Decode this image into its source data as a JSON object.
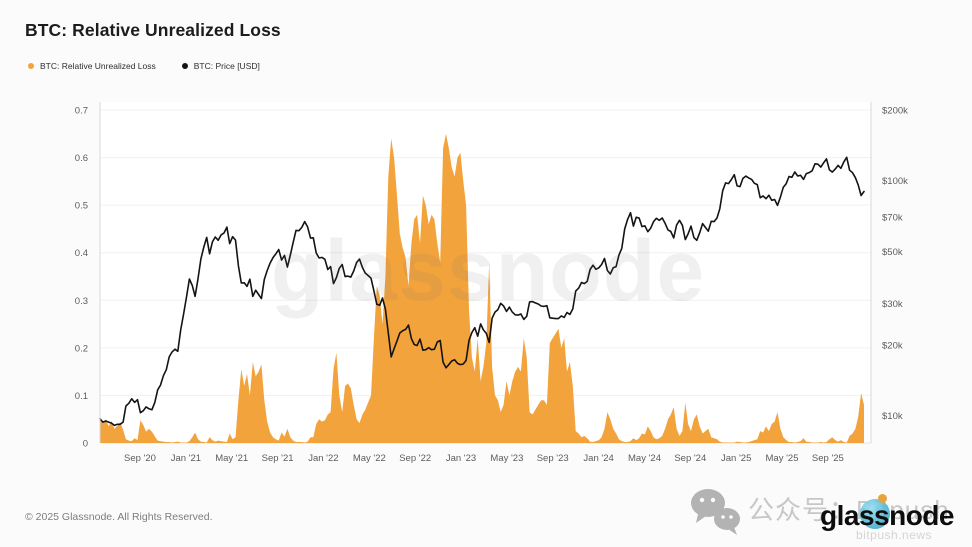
{
  "title": "BTC: Relative Unrealized Loss",
  "legend": [
    {
      "label": "BTC: Relative Unrealized Loss",
      "color": "#f2a33c"
    },
    {
      "label": "BTC: Price [USD]",
      "color": "#141414"
    }
  ],
  "footer": {
    "copyright": "© 2025 Glassnode. All Rights Reserved."
  },
  "watermark": {
    "center": "glassnode",
    "wechat_label": "公众号：Bitpush",
    "brand": "glassnode",
    "site": "bitpush.news"
  },
  "chart_data": {
    "type": "area+line",
    "title": "BTC: Relative Unrealized Loss",
    "x_range": [
      "May 2020",
      "Nov 2025"
    ],
    "x_ticks": [
      "Sep '20",
      "Jan '21",
      "May '21",
      "Sep '21",
      "Jan '22",
      "May '22",
      "Sep '22",
      "Jan '23",
      "May '23",
      "Sep '23",
      "Jan '24",
      "May '24",
      "Sep '24",
      "Jan '25",
      "May '25",
      "Sep '25"
    ],
    "grid": true,
    "legend_position": "top-left",
    "y_left": {
      "label": "Relative Unrealized Loss",
      "min": 0,
      "max": 0.7,
      "ticks": [
        0,
        0.1,
        0.2,
        0.3,
        0.4,
        0.5,
        0.6,
        0.7
      ],
      "scale": "linear"
    },
    "y_right": {
      "label": "BTC Price [USD]",
      "ticks_k": [
        200,
        100,
        70,
        50,
        30,
        20,
        10
      ],
      "scale": "log",
      "unit": "USD thousands"
    },
    "sampling": "weekly (4 points per month)",
    "series": [
      {
        "name": "BTC: Relative Unrealized Loss",
        "axis": "left",
        "type": "area",
        "color": "#f2a33c",
        "values": [
          0.055,
          0.042,
          0.05,
          0.035,
          0.046,
          0.03,
          0.036,
          0.044,
          0.028,
          0.008,
          0.005,
          0.004,
          0.01,
          0.006,
          0.048,
          0.038,
          0.024,
          0.03,
          0.024,
          0.014,
          0.005,
          0.004,
          0.003,
          0.002,
          0.002,
          0.001,
          0.002,
          0.003,
          0.001,
          0.001,
          0.001,
          0.004,
          0.012,
          0.022,
          0.008,
          0.003,
          0.002,
          0.001,
          0.012,
          0.006,
          0.003,
          0.005,
          0.004,
          0.003,
          0.002,
          0.02,
          0.008,
          0.012,
          0.09,
          0.155,
          0.12,
          0.145,
          0.1,
          0.17,
          0.14,
          0.15,
          0.165,
          0.09,
          0.045,
          0.022,
          0.012,
          0.008,
          0.005,
          0.022,
          0.013,
          0.03,
          0.012,
          0.005,
          0.002,
          0.002,
          0.002,
          0.001,
          0.003,
          0.012,
          0.012,
          0.04,
          0.05,
          0.045,
          0.048,
          0.06,
          0.065,
          0.155,
          0.19,
          0.1,
          0.065,
          0.12,
          0.125,
          0.115,
          0.08,
          0.05,
          0.042,
          0.06,
          0.07,
          0.085,
          0.1,
          0.22,
          0.33,
          0.31,
          0.25,
          0.35,
          0.56,
          0.64,
          0.6,
          0.52,
          0.44,
          0.41,
          0.39,
          0.33,
          0.42,
          0.47,
          0.48,
          0.42,
          0.52,
          0.5,
          0.46,
          0.48,
          0.47,
          0.42,
          0.38,
          0.62,
          0.65,
          0.62,
          0.58,
          0.56,
          0.6,
          0.61,
          0.55,
          0.5,
          0.28,
          0.18,
          0.15,
          0.22,
          0.13,
          0.16,
          0.21,
          0.38,
          0.16,
          0.1,
          0.09,
          0.065,
          0.08,
          0.13,
          0.1,
          0.13,
          0.15,
          0.16,
          0.15,
          0.22,
          0.18,
          0.065,
          0.06,
          0.07,
          0.08,
          0.09,
          0.09,
          0.08,
          0.21,
          0.22,
          0.23,
          0.24,
          0.2,
          0.22,
          0.15,
          0.17,
          0.12,
          0.025,
          0.02,
          0.012,
          0.015,
          0.01,
          0.003,
          0.002,
          0.004,
          0.006,
          0.012,
          0.03,
          0.065,
          0.05,
          0.03,
          0.02,
          0.008,
          0.004,
          0.002,
          0.002,
          0.004,
          0.01,
          0.006,
          0.01,
          0.02,
          0.018,
          0.035,
          0.025,
          0.012,
          0.008,
          0.01,
          0.015,
          0.03,
          0.05,
          0.06,
          0.075,
          0.03,
          0.015,
          0.025,
          0.085,
          0.04,
          0.025,
          0.05,
          0.06,
          0.035,
          0.02,
          0.025,
          0.03,
          0.012,
          0.01,
          0.008,
          0.003,
          0.001,
          0.001,
          0.001,
          0.001,
          0.001,
          0.003,
          0.002,
          0.001,
          0.001,
          0.002,
          0.004,
          0.006,
          0.008,
          0.025,
          0.022,
          0.035,
          0.025,
          0.04,
          0.045,
          0.065,
          0.03,
          0.012,
          0.006,
          0.002,
          0.002,
          0.001,
          0.002,
          0.004,
          0.01,
          0.003,
          0.002,
          0.001,
          0.001,
          0.001,
          0.002,
          0.001,
          0.002,
          0.008,
          0.012,
          0.006,
          0.003,
          0.006,
          0.002,
          0.001,
          0.015,
          0.02,
          0.03,
          0.055,
          0.105,
          0.08
        ]
      },
      {
        "name": "BTC: Price [USD]",
        "axis": "right",
        "type": "line",
        "color": "#141414",
        "unit": "USD thousands",
        "values": [
          9.7,
          9.4,
          9.5,
          9.4,
          9.3,
          9.1,
          9.2,
          9.2,
          9.4,
          11.0,
          11.3,
          11.8,
          11.4,
          11.7,
          10.3,
          10.5,
          10.9,
          10.7,
          10.6,
          11.4,
          12.9,
          13.5,
          14.8,
          15.7,
          17.8,
          18.7,
          19.2,
          18.8,
          23.2,
          27.1,
          32.0,
          38.2,
          35.8,
          32.2,
          38.3,
          46.5,
          52.2,
          57.4,
          48.9,
          54.9,
          57.6,
          55.8,
          58.8,
          59.9,
          63.5,
          54.0,
          57.8,
          55.9,
          43.5,
          36.7,
          36.8,
          35.5,
          38.1,
          32.2,
          34.2,
          32.8,
          31.5,
          38.0,
          41.5,
          44.6,
          47.1,
          48.9,
          51.0,
          46.0,
          48.1,
          42.9,
          48.2,
          54.7,
          61.5,
          61.3,
          63.3,
          67.0,
          63.6,
          57.0,
          57.2,
          49.3,
          46.9,
          47.2,
          46.3,
          41.9,
          43.1,
          36.5,
          38.7,
          42.4,
          44.0,
          39.1,
          39.3,
          38.9,
          41.3,
          44.9,
          46.4,
          42.8,
          40.5,
          39.5,
          38.5,
          34.0,
          29.8,
          29.5,
          31.7,
          28.4,
          22.5,
          17.8,
          19.3,
          20.8,
          22.5,
          23.0,
          23.3,
          24.3,
          21.3,
          20.1,
          19.9,
          21.2,
          19.0,
          19.1,
          19.5,
          19.1,
          19.2,
          20.6,
          20.9,
          16.9,
          16.0,
          16.5,
          17.1,
          17.3,
          16.7,
          16.5,
          16.6,
          17.2,
          20.9,
          22.6,
          23.7,
          21.8,
          24.6,
          23.2,
          22.4,
          20.5,
          26.0,
          27.6,
          28.3,
          30.1,
          29.3,
          27.8,
          29.0,
          27.6,
          26.9,
          26.8,
          27.1,
          25.7,
          26.5,
          30.5,
          30.6,
          30.2,
          29.9,
          29.3,
          29.2,
          29.4,
          26.1,
          26.0,
          25.9,
          25.9,
          26.6,
          26.2,
          27.5,
          27.0,
          28.5,
          33.9,
          34.9,
          36.9,
          36.5,
          37.3,
          41.9,
          43.7,
          42.0,
          42.6,
          44.0,
          46.7,
          41.5,
          40.1,
          42.6,
          43.1,
          48.2,
          51.6,
          62.4,
          68.5,
          73.1,
          64.1,
          69.9,
          69.4,
          63.8,
          64.3,
          60.7,
          62.9,
          66.9,
          69.2,
          67.8,
          69.4,
          65.9,
          61.8,
          60.8,
          57.1,
          64.8,
          67.9,
          64.6,
          56.2,
          59.4,
          64.1,
          57.3,
          55.8,
          60.1,
          65.7,
          63.3,
          61.0,
          67.2,
          67.0,
          69.4,
          76.0,
          90.6,
          97.9,
          97.2,
          101.2,
          106.1,
          95.2,
          94.4,
          102.3,
          104.7,
          102.8,
          101.3,
          97.5,
          96.3,
          84.7,
          86.1,
          83.9,
          86.8,
          82.6,
          83.2,
          78.5,
          85.1,
          93.9,
          97.1,
          104.2,
          103.4,
          108.9,
          104.8,
          105.5,
          101.3,
          107.2,
          108.3,
          110.2,
          118.1,
          117.6,
          114.3,
          119.2,
          123.9,
          111.3,
          108.8,
          112.1,
          116.2,
          113.0,
          120.3,
          125.8,
          110.9,
          108.2,
          103.0,
          96.0,
          86.5,
          90.0
        ]
      }
    ]
  }
}
